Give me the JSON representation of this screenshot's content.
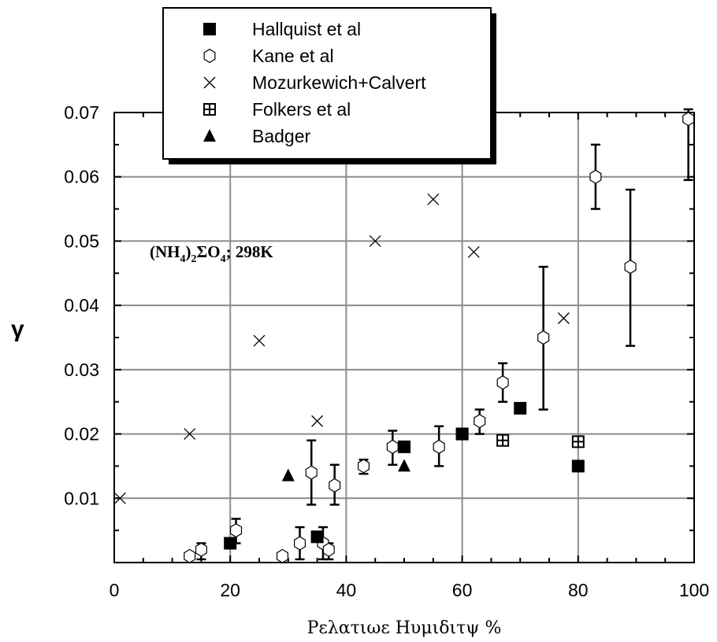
{
  "chart_data": {
    "type": "scatter",
    "xlabel": "Ρελατιωε Ηυμιδιτψ %",
    "ylabel": "γ",
    "xlim": [
      0,
      100
    ],
    "ylim": [
      0,
      0.07
    ],
    "x_ticks": [
      0,
      20,
      40,
      60,
      80,
      100
    ],
    "x_tick_labels": [
      "0",
      "20",
      "40",
      "60",
      "80",
      "100"
    ],
    "y_ticks": [
      0.01,
      0.02,
      0.03,
      0.04,
      0.05,
      0.06,
      0.07
    ],
    "y_tick_labels": [
      "0.01",
      "0.02",
      "0.03",
      "0.04",
      "0.05",
      "0.06",
      "0.07"
    ],
    "grid": true,
    "legend_position": "top-left",
    "annotation": {
      "main": "(NH",
      "sub1": "4",
      "mid": ")",
      "sub2": "2",
      "text2": "ΣO",
      "sub3": "4",
      "tail": "; 298K"
    },
    "series": [
      {
        "name": "Hallquist et al",
        "marker": "square-filled",
        "points": [
          {
            "x": 20,
            "y": 0.003
          },
          {
            "x": 35,
            "y": 0.004
          },
          {
            "x": 50,
            "y": 0.018
          },
          {
            "x": 60,
            "y": 0.02
          },
          {
            "x": 70,
            "y": 0.024
          },
          {
            "x": 80,
            "y": 0.015
          }
        ]
      },
      {
        "name": "Kane et al",
        "marker": "hexagon-open",
        "points": [
          {
            "x": 13,
            "y": 0.001,
            "err": [
              0.0005,
              0.0015
            ]
          },
          {
            "x": 15,
            "y": 0.002,
            "err": [
              0.0005,
              0.003
            ]
          },
          {
            "x": 21,
            "y": 0.005,
            "err": [
              0.003,
              0.0068
            ]
          },
          {
            "x": 29,
            "y": 0.001
          },
          {
            "x": 32,
            "y": 0.003,
            "err": [
              0.0005,
              0.0055
            ]
          },
          {
            "x": 34,
            "y": 0.014,
            "err": [
              0.009,
              0.019
            ]
          },
          {
            "x": 36,
            "y": 0.003,
            "err": [
              0.0005,
              0.0055
            ]
          },
          {
            "x": 37,
            "y": 0.002,
            "err": [
              0.0005,
              0.003
            ]
          },
          {
            "x": 38,
            "y": 0.012,
            "err": [
              0.009,
              0.0152
            ]
          },
          {
            "x": 43,
            "y": 0.015,
            "err": [
              0.0138,
              0.016
            ]
          },
          {
            "x": 48,
            "y": 0.018,
            "err": [
              0.0152,
              0.0205
            ]
          },
          {
            "x": 56,
            "y": 0.018,
            "err": [
              0.015,
              0.0212
            ]
          },
          {
            "x": 63,
            "y": 0.022,
            "err": [
              0.02,
              0.0238
            ]
          },
          {
            "x": 67,
            "y": 0.028,
            "err": [
              0.025,
              0.031
            ]
          },
          {
            "x": 74,
            "y": 0.035,
            "err": [
              0.0238,
              0.046
            ]
          },
          {
            "x": 83,
            "y": 0.06,
            "err": [
              0.055,
              0.065
            ]
          },
          {
            "x": 89,
            "y": 0.046,
            "err": [
              0.0337,
              0.058
            ]
          },
          {
            "x": 99,
            "y": 0.069,
            "err": [
              0.0595,
              0.0705
            ]
          }
        ]
      },
      {
        "name": "Mozurkewich+Calvert",
        "marker": "x",
        "points": [
          {
            "x": 1,
            "y": 0.01
          },
          {
            "x": 13,
            "y": 0.02
          },
          {
            "x": 25,
            "y": 0.0345
          },
          {
            "x": 35,
            "y": 0.022
          },
          {
            "x": 45,
            "y": 0.05
          },
          {
            "x": 55,
            "y": 0.0565
          },
          {
            "x": 62,
            "y": 0.0483
          },
          {
            "x": 77.5,
            "y": 0.038
          }
        ]
      },
      {
        "name": "Folkers et al",
        "marker": "square-plus",
        "points": [
          {
            "x": 60,
            "y": 0.02
          },
          {
            "x": 67,
            "y": 0.019
          },
          {
            "x": 80,
            "y": 0.0188
          }
        ]
      },
      {
        "name": "Badger",
        "marker": "triangle-filled",
        "points": [
          {
            "x": 30,
            "y": 0.0135
          },
          {
            "x": 50,
            "y": 0.015
          }
        ]
      }
    ]
  }
}
